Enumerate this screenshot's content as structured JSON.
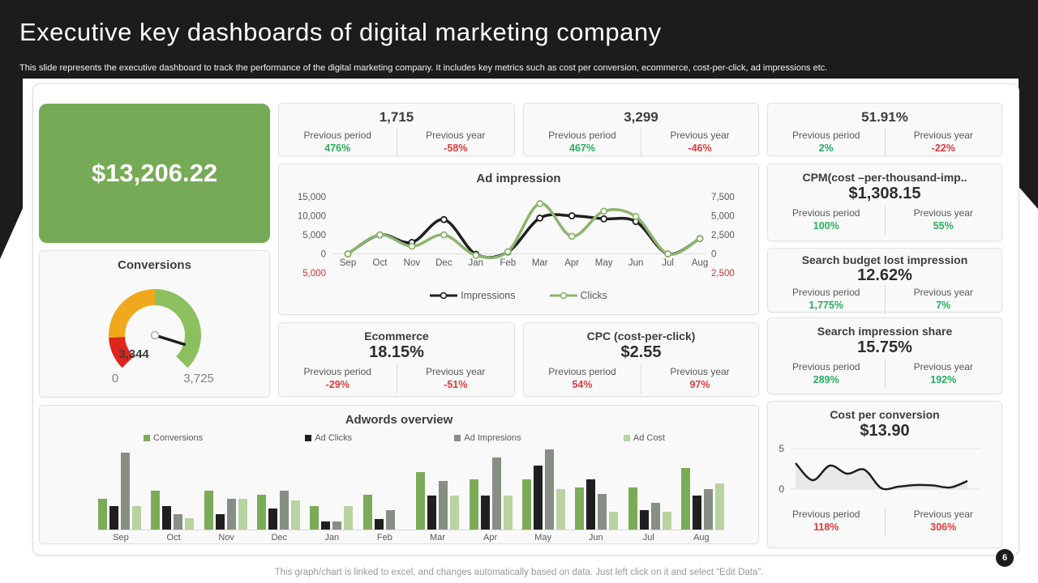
{
  "palette": {
    "green": "#27ae60",
    "red": "#e03b3b",
    "dark": "#1c1c1c",
    "accent_green_box": "#77aa56"
  },
  "header": {
    "title": "Executive key dashboards of digital marketing company",
    "subtitle": "This slide represents the executive dashboard to track the performance of the digital marketing company. It includes key metrics such as cost per conversion, ecommerce, cost-per-click, ad impressions etc."
  },
  "footer": {
    "note": "This graph/chart is linked to excel, and changes automatically based on data. Just left click on it and select “Edit Data”.",
    "page_number": "6"
  },
  "revenue_box": {
    "value": "$13,206.22"
  },
  "kpi_row": [
    {
      "value": "1,715",
      "prev_period": {
        "label": "Previous period",
        "value": "476%",
        "color": "green"
      },
      "prev_year": {
        "label": "Previous year",
        "value": "-58%",
        "color": "red"
      }
    },
    {
      "value": "3,299",
      "prev_period": {
        "label": "Previous period",
        "value": "467%",
        "color": "green"
      },
      "prev_year": {
        "label": "Previous year",
        "value": "-46%",
        "color": "red"
      }
    },
    {
      "value": "51.91%",
      "prev_period": {
        "label": "Previous period",
        "value": "2%",
        "color": "green"
      },
      "prev_year": {
        "label": "Previous year",
        "value": "-22%",
        "color": "red"
      }
    }
  ],
  "metric_cards": {
    "cpm": {
      "title": "CPM(cost –per-thousand-imp..",
      "value": "$1,308.15",
      "prev_period": {
        "label": "Previous period",
        "value": "100%",
        "color": "green"
      },
      "prev_year": {
        "label": "Previous year",
        "value": "55%",
        "color": "green"
      }
    },
    "sbli": {
      "title": "Search budget lost impression",
      "value": "12.62%",
      "prev_period": {
        "label": "Previous period",
        "value": "1,775%",
        "color": "green"
      },
      "prev_year": {
        "label": "Previous year",
        "value": "7%",
        "color": "green"
      }
    },
    "ecommerce": {
      "title": "Ecommerce",
      "value": "18.15%",
      "prev_period": {
        "label": "Previous period",
        "value": "-29%",
        "color": "red"
      },
      "prev_year": {
        "label": "Previous year",
        "value": "-51%",
        "color": "red"
      }
    },
    "cpc": {
      "title": "CPC (cost-per-click)",
      "value": "$2.55",
      "prev_period": {
        "label": "Previous period",
        "value": "54%",
        "color": "red"
      },
      "prev_year": {
        "label": "Previous year",
        "value": "97%",
        "color": "red"
      }
    },
    "sis": {
      "title": "Search impression share",
      "value": "15.75%",
      "prev_period": {
        "label": "Previous period",
        "value": "289%",
        "color": "green"
      },
      "prev_year": {
        "label": "Previous year",
        "value": "192%",
        "color": "green"
      }
    },
    "cpconv": {
      "title": "Cost per conversion",
      "value": "$13.90",
      "prev_period": {
        "label": "Previous period",
        "value": "118%",
        "color": "red"
      },
      "prev_year": {
        "label": "Previous year",
        "value": "306%",
        "color": "red"
      }
    }
  },
  "chart_data": [
    {
      "id": "conversions_gauge",
      "type": "gauge",
      "title": "Conversions",
      "value": 3344,
      "value_label": "3,344",
      "min": 0,
      "max": 3725,
      "min_label": "0",
      "max_label": "3,725",
      "sweep_deg": 270,
      "segments": [
        {
          "color": "#e0251b",
          "from": 0.0,
          "to": 0.155
        },
        {
          "color": "#f2a81c",
          "from": 0.155,
          "to": 0.5
        },
        {
          "color": "#8cc05f",
          "from": 0.5,
          "to": 1.0
        }
      ]
    },
    {
      "id": "ad_impression",
      "type": "line",
      "title": "Ad impression",
      "categories": [
        "Sep",
        "Oct",
        "Nov",
        "Dec",
        "Jan",
        "Feb",
        "Mar",
        "Apr",
        "May",
        "Jun",
        "Jul",
        "Aug"
      ],
      "series": [
        {
          "name": "Impressions",
          "axis": "left",
          "color": "#1f1f1f",
          "values": [
            0,
            5000,
            3000,
            9000,
            -100,
            500,
            9400,
            10000,
            9200,
            8500,
            0,
            4000
          ]
        },
        {
          "name": "Clicks",
          "axis": "right",
          "color": "#8cb56e",
          "values": [
            0,
            2500,
            1000,
            2500,
            -200,
            300,
            6600,
            2300,
            5600,
            4900,
            0,
            2000
          ]
        }
      ],
      "left_axis": {
        "max": 15000,
        "min": -5000,
        "ticks": [
          "15,000",
          "10,000",
          "5,000",
          "0",
          "5,000"
        ],
        "negative_tick_red": true
      },
      "right_axis": {
        "max": 7500,
        "min": -2500,
        "ticks": [
          "7,500",
          "5,000",
          "2,500",
          "0",
          "2,500"
        ],
        "negative_tick_red": true
      },
      "legend_position": "bottom"
    },
    {
      "id": "adwords_overview",
      "type": "bar",
      "title": "Adwords overview",
      "categories": [
        "Sep",
        "Oct",
        "Nov",
        "Dec",
        "Jan",
        "Feb",
        "Mar",
        "Apr",
        "May",
        "Jun",
        "Jul",
        "Aug"
      ],
      "ymax": 10.5,
      "series": [
        {
          "name": "Conversions",
          "color": "#7bab57",
          "values": [
            4.0,
            5.0,
            5.0,
            4.5,
            3.0,
            4.5,
            7.5,
            6.5,
            6.5,
            5.5,
            5.5,
            8.0
          ]
        },
        {
          "name": "Ad Clicks",
          "color": "#1f1f1f",
          "values": [
            3.0,
            3.0,
            2.0,
            2.7,
            1.0,
            1.4,
            4.4,
            4.4,
            8.3,
            6.5,
            2.5,
            4.4
          ]
        },
        {
          "name": "Ad Impresions",
          "color": "#878f85",
          "values": [
            10.0,
            2.0,
            4.0,
            5.0,
            1.0,
            2.5,
            6.3,
            9.3,
            10.4,
            4.6,
            3.5,
            5.3
          ]
        },
        {
          "name": "Ad Cost",
          "color": "#b9d3a0",
          "values": [
            3.0,
            1.5,
            4.0,
            3.8,
            3.0,
            0.0,
            4.4,
            4.4,
            5.3,
            2.3,
            2.3,
            6.0
          ]
        }
      ]
    },
    {
      "id": "cost_per_conversion_trend",
      "type": "area",
      "yticks": [
        "5",
        "0"
      ],
      "ymax": 5,
      "values": [
        3.2,
        1.1,
        2.9,
        1.9,
        2.4,
        0.1,
        0.3,
        0.5,
        0.45,
        0.2,
        1.0
      ],
      "line_color": "#1f1f1f",
      "fill_color": "#e8e8e8"
    }
  ]
}
